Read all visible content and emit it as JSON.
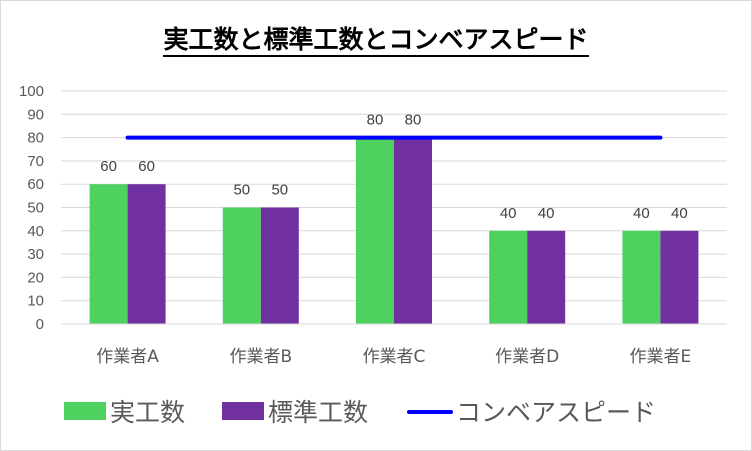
{
  "chart_data": {
    "type": "bar",
    "title": "実工数と標準工数とコンベアスピード",
    "categories": [
      "作業者A",
      "作業者B",
      "作業者C",
      "作業者D",
      "作業者E"
    ],
    "series": [
      {
        "name": "実工数",
        "values": [
          60,
          50,
          80,
          40,
          40
        ],
        "color": "#4fd160"
      },
      {
        "name": "標準工数",
        "values": [
          60,
          50,
          80,
          40,
          40
        ],
        "color": "#7030a0"
      }
    ],
    "line": {
      "name": "コンベアスピード",
      "value": 80,
      "color": "#0000ff"
    },
    "ylim": [
      0,
      100
    ],
    "yticks": [
      "0",
      "10",
      "20",
      "30",
      "40",
      "50",
      "60",
      "70",
      "80",
      "90",
      "100"
    ],
    "grid": true,
    "legend": "bottom"
  }
}
